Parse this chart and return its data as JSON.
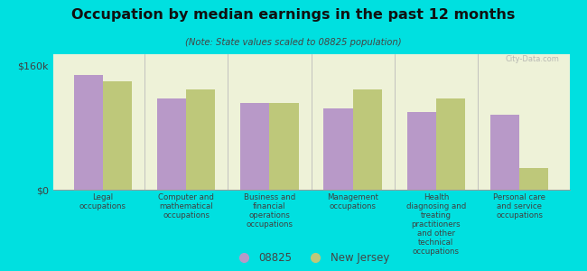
{
  "title": "Occupation by median earnings in the past 12 months",
  "subtitle": "(Note: State values scaled to 08825 population)",
  "background_color": "#00e0e0",
  "plot_bg_color": "#eef2d8",
  "categories": [
    "Legal\noccupations",
    "Computer and\nmathematical\noccupations",
    "Business and\nfinancial\noperations\noccupations",
    "Management\noccupations",
    "Health\ndiagnosing and\ntreating\npractitioners\nand other\ntechnical\noccupations",
    "Personal care\nand service\noccupations"
  ],
  "values_08825": [
    148000,
    118000,
    112000,
    105000,
    100000,
    97000
  ],
  "values_nj": [
    140000,
    130000,
    112000,
    130000,
    118000,
    28000
  ],
  "color_08825": "#b899c8",
  "color_nj": "#bec87a",
  "ylim": [
    0,
    175000
  ],
  "yticks": [
    0,
    160000
  ],
  "ytick_labels": [
    "$0",
    "$160k"
  ],
  "legend_08825": "08825",
  "legend_nj": "New Jersey",
  "watermark": "City-Data.com"
}
